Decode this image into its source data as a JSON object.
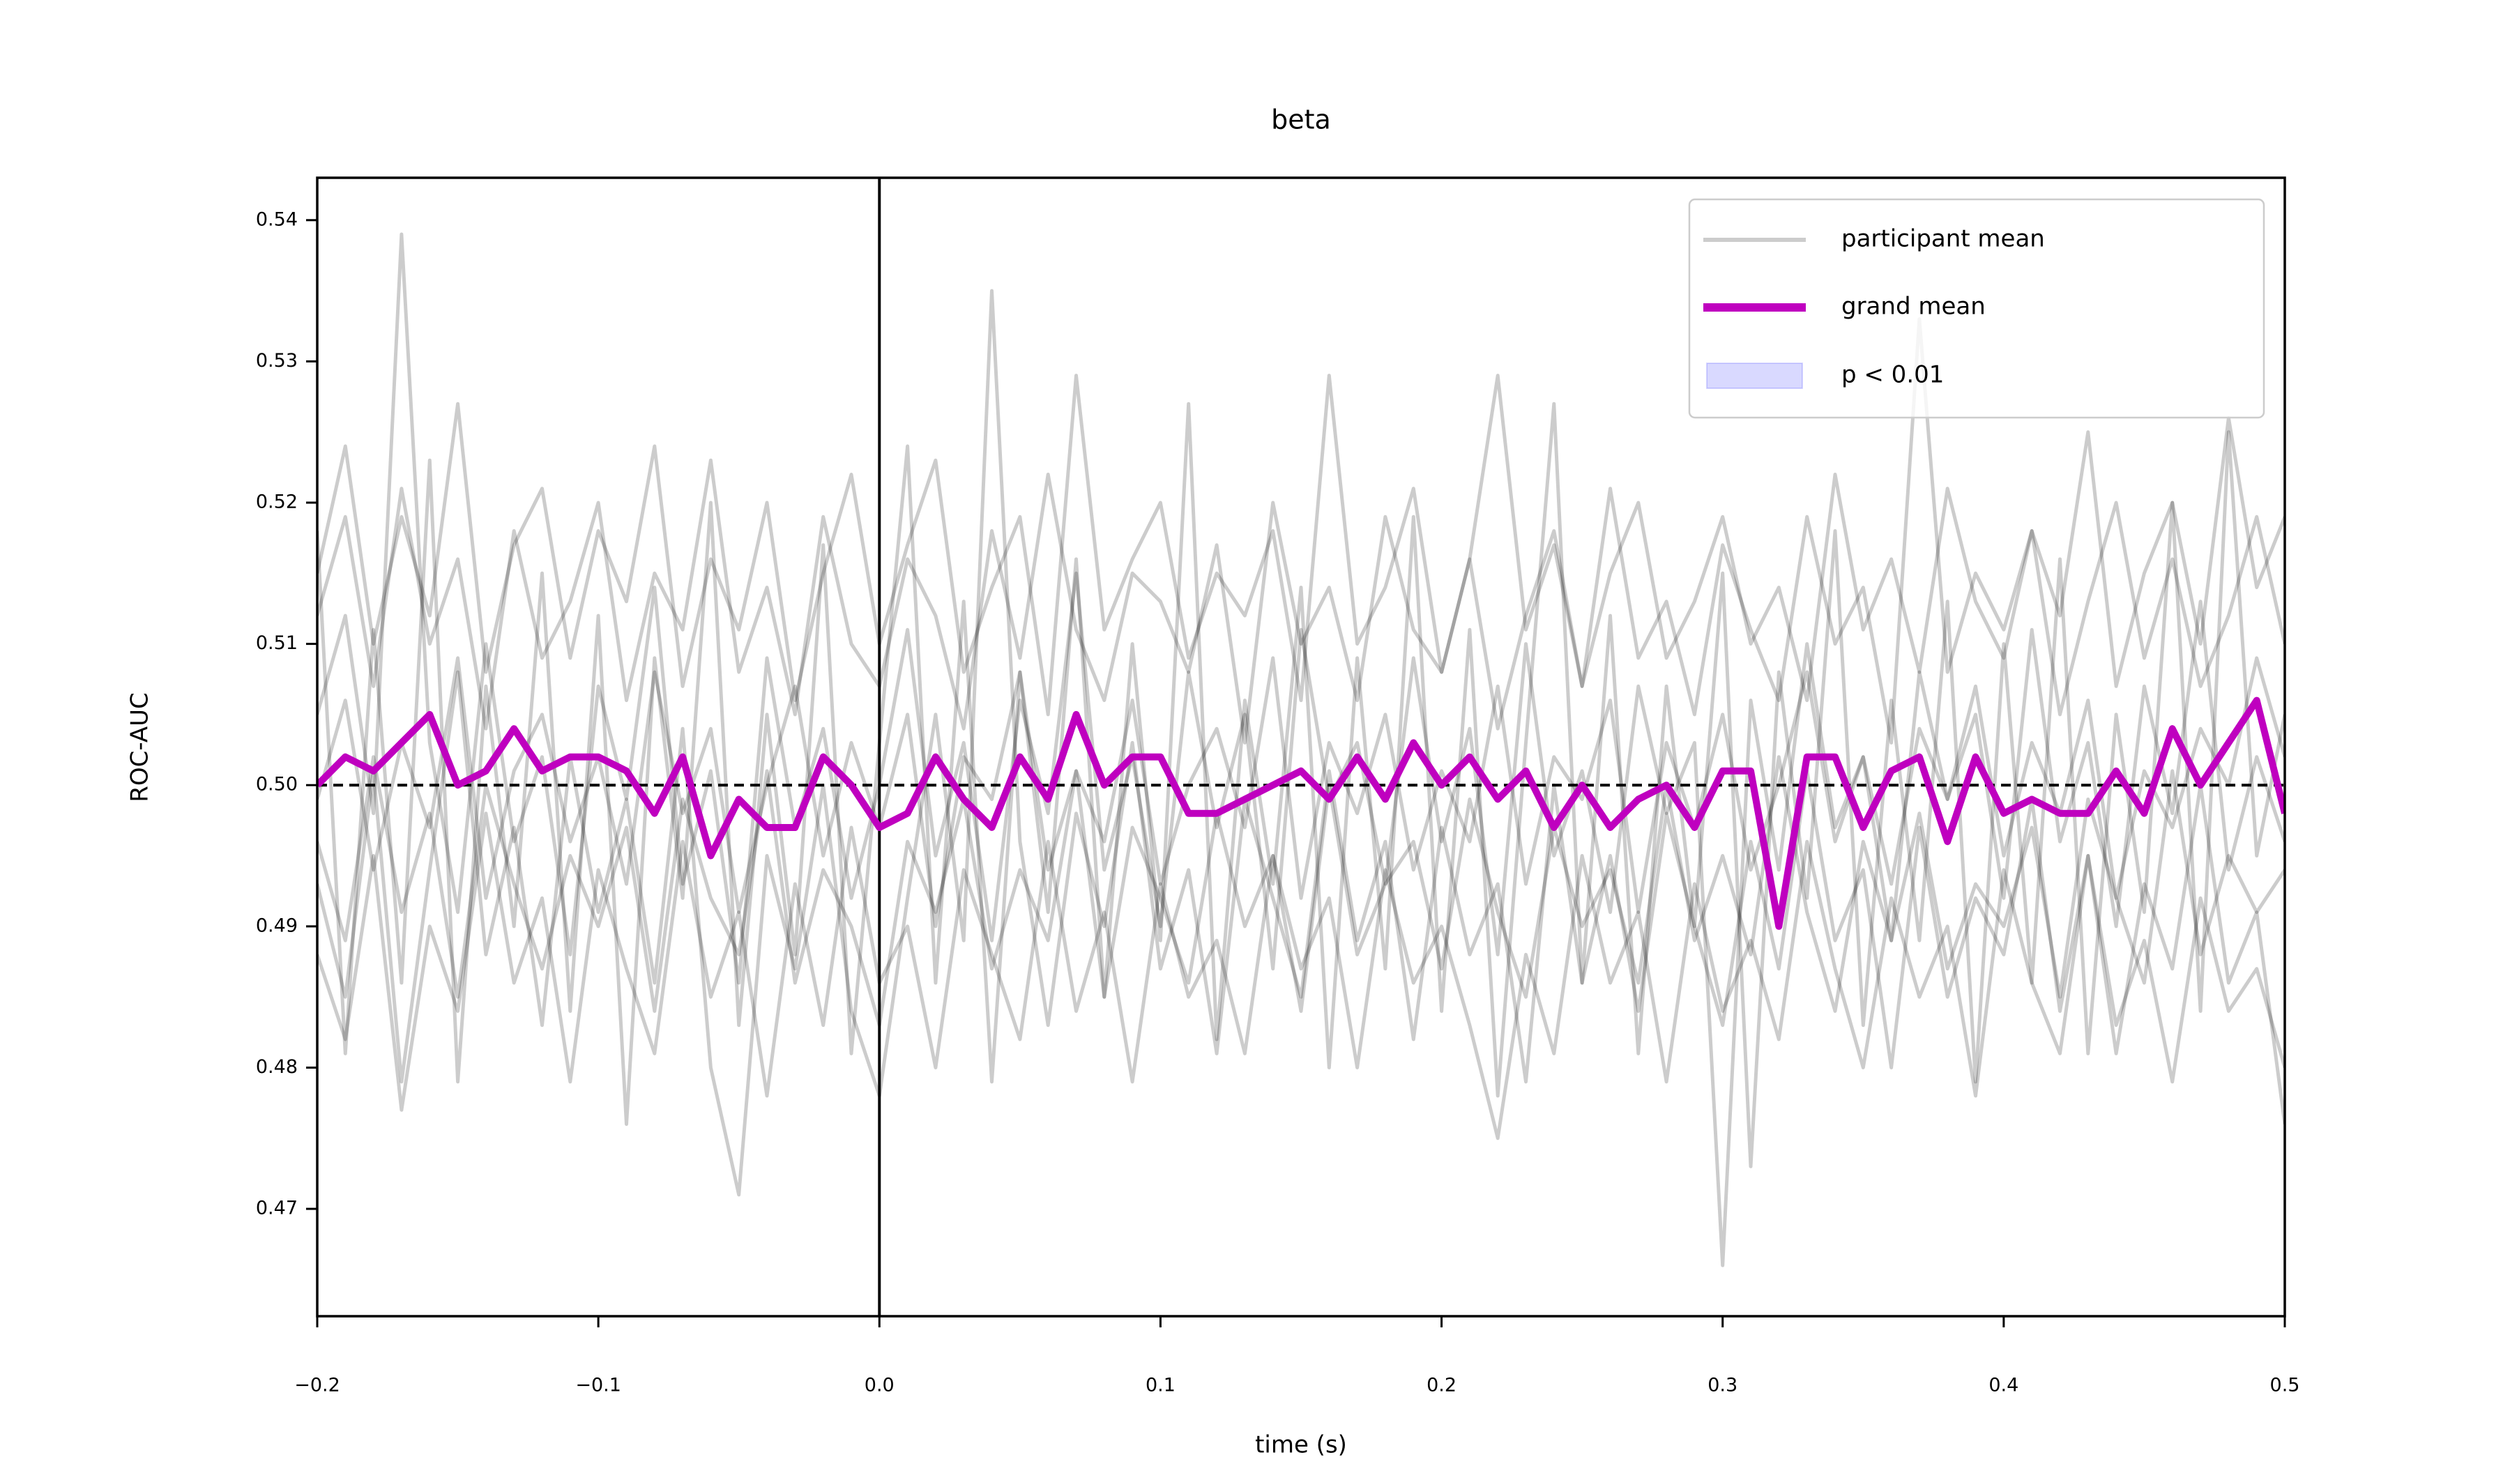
{
  "chart_data": {
    "type": "line",
    "title": "beta",
    "xlabel": "time (s)",
    "ylabel": "ROC-AUC",
    "xlim": [
      -0.2,
      0.5
    ],
    "ylim": [
      0.4624,
      0.543
    ],
    "xticks": [
      {
        "value": -0.2,
        "label": "−0.2"
      },
      {
        "value": -0.1,
        "label": "−0.1"
      },
      {
        "value": 0,
        "label": "0.0"
      },
      0.1,
      0.2,
      0.3,
      0.4,
      0.5
    ],
    "yticks": [
      0.47,
      0.48,
      0.49,
      {
        "value": 0.5,
        "label": "0.50"
      },
      0.51,
      0.52,
      0.53,
      0.54
    ],
    "reference_lines": {
      "x": 0,
      "y": 0.5
    },
    "legend": "upper right",
    "x": [
      -0.2,
      -0.19,
      -0.18,
      -0.17,
      -0.16,
      -0.15,
      -0.14,
      -0.13,
      -0.12,
      -0.11,
      -0.1,
      -0.09,
      -0.08,
      -0.07,
      -0.06,
      -0.05,
      -0.04,
      -0.03,
      -0.02,
      -0.01,
      0,
      0.01,
      0.02,
      0.03,
      0.04,
      0.05,
      0.06,
      0.07,
      0.08,
      0.09,
      0.1,
      0.11,
      0.12,
      0.13,
      0.14,
      0.15,
      0.16,
      0.17,
      0.18,
      0.19,
      0.2,
      0.21,
      0.22,
      0.23,
      0.24,
      0.25,
      0.26,
      0.27,
      0.28,
      0.29,
      0.3,
      0.31,
      0.32,
      0.33,
      0.34,
      0.35,
      0.36,
      0.37,
      0.38,
      0.39,
      0.4,
      0.41,
      0.42,
      0.43,
      0.44,
      0.45,
      0.46,
      0.47,
      0.48,
      0.49,
      0.5
    ],
    "participants": {
      "name": "participant mean",
      "color": "#000000",
      "alpha": 0.2,
      "series": [
        [
          0.505,
          0.512,
          0.498,
          0.539,
          0.503,
          0.491,
          0.51,
          0.496,
          0.502,
          0.488,
          0.507,
          0.499,
          0.514,
          0.493,
          0.501,
          0.486,
          0.509,
          0.497,
          0.504,
          0.492,
          0.5,
          0.511,
          0.495,
          0.503,
          0.489,
          0.506,
          0.498,
          0.515,
          0.494,
          0.502,
          0.49,
          0.508,
          0.497,
          0.505,
          0.487,
          0.511,
          0.499,
          0.503,
          0.493,
          0.509,
          0.496,
          0.504,
          0.488,
          0.51,
          0.495,
          0.501,
          0.491,
          0.507,
          0.498,
          0.503,
          0.466,
          0.506,
          0.494,
          0.51,
          0.497,
          0.502,
          0.489,
          0.508,
          0.499,
          0.505,
          0.492,
          0.511,
          0.496,
          0.503,
          0.49,
          0.507,
          0.498,
          0.513,
          0.494,
          0.502,
          0.496
        ],
        [
          0.493,
          0.485,
          0.501,
          0.479,
          0.494,
          0.508,
          0.488,
          0.497,
          0.483,
          0.502,
          0.491,
          0.499,
          0.486,
          0.504,
          0.48,
          0.471,
          0.495,
          0.487,
          0.5,
          0.484,
          0.478,
          0.492,
          0.505,
          0.489,
          0.535,
          0.496,
          0.483,
          0.498,
          0.49,
          0.503,
          0.487,
          0.494,
          0.481,
          0.499,
          0.492,
          0.485,
          0.501,
          0.489,
          0.496,
          0.482,
          0.497,
          0.488,
          0.493,
          0.479,
          0.5,
          0.486,
          0.495,
          0.484,
          0.498,
          0.49,
          0.483,
          0.496,
          0.487,
          0.501,
          0.489,
          0.494,
          0.48,
          0.497,
          0.485,
          0.492,
          0.488,
          0.499,
          0.484,
          0.495,
          0.481,
          0.493,
          0.487,
          0.5,
          0.486,
          0.491,
          0.476
        ],
        [
          0.512,
          0.519,
          0.507,
          0.521,
          0.51,
          0.516,
          0.504,
          0.518,
          0.509,
          0.513,
          0.52,
          0.506,
          0.515,
          0.511,
          0.523,
          0.508,
          0.514,
          0.505,
          0.519,
          0.51,
          0.507,
          0.516,
          0.512,
          0.504,
          0.518,
          0.509,
          0.522,
          0.511,
          0.506,
          0.515,
          0.513,
          0.508,
          0.517,
          0.503,
          0.52,
          0.51,
          0.514,
          0.506,
          0.519,
          0.511,
          0.508,
          0.516,
          0.504,
          0.512,
          0.518,
          0.507,
          0.521,
          0.509,
          0.513,
          0.505,
          0.517,
          0.511,
          0.506,
          0.519,
          0.51,
          0.514,
          0.503,
          0.533,
          0.508,
          0.515,
          0.511,
          0.518,
          0.505,
          0.513,
          0.52,
          0.509,
          0.516,
          0.507,
          0.512,
          0.519,
          0.51
        ],
        [
          0.499,
          0.506,
          0.494,
          0.503,
          0.497,
          0.509,
          0.492,
          0.501,
          0.505,
          0.496,
          0.502,
          0.493,
          0.508,
          0.498,
          0.504,
          0.491,
          0.5,
          0.507,
          0.495,
          0.503,
          0.497,
          0.505,
          0.49,
          0.502,
          0.499,
          0.508,
          0.494,
          0.501,
          0.496,
          0.506,
          0.493,
          0.5,
          0.504,
          0.497,
          0.509,
          0.492,
          0.503,
          0.498,
          0.505,
          0.494,
          0.501,
          0.496,
          0.507,
          0.493,
          0.502,
          0.499,
          0.506,
          0.491,
          0.503,
          0.497,
          0.505,
          0.494,
          0.5,
          0.508,
          0.496,
          0.502,
          0.493,
          0.504,
          0.499,
          0.507,
          0.495,
          0.503,
          0.498,
          0.506,
          0.492,
          0.501,
          0.497,
          0.504,
          0.5,
          0.509,
          0.502
        ],
        [
          0.488,
          0.482,
          0.495,
          0.477,
          0.49,
          0.484,
          0.498,
          0.486,
          0.492,
          0.479,
          0.494,
          0.487,
          0.481,
          0.496,
          0.485,
          0.491,
          0.478,
          0.493,
          0.483,
          0.497,
          0.486,
          0.49,
          0.48,
          0.494,
          0.488,
          0.482,
          0.496,
          0.484,
          0.491,
          0.479,
          0.493,
          0.485,
          0.489,
          0.481,
          0.495,
          0.487,
          0.492,
          0.48,
          0.494,
          0.486,
          0.49,
          0.483,
          0.475,
          0.488,
          0.481,
          0.495,
          0.486,
          0.491,
          0.479,
          0.493,
          0.484,
          0.489,
          0.482,
          0.496,
          0.487,
          0.48,
          0.492,
          0.485,
          0.49,
          0.478,
          0.494,
          0.486,
          0.481,
          0.495,
          0.483,
          0.489,
          0.479,
          0.492,
          0.484,
          0.487,
          0.48
        ],
        [
          0.515,
          0.524,
          0.51,
          0.519,
          0.512,
          0.527,
          0.508,
          0.517,
          0.521,
          0.509,
          0.518,
          0.513,
          0.524,
          0.507,
          0.516,
          0.511,
          0.52,
          0.506,
          0.515,
          0.522,
          0.51,
          0.517,
          0.523,
          0.508,
          0.514,
          0.519,
          0.505,
          0.529,
          0.511,
          0.516,
          0.52,
          0.509,
          0.515,
          0.512,
          0.518,
          0.506,
          0.529,
          0.51,
          0.514,
          0.521,
          0.508,
          0.516,
          0.529,
          0.511,
          0.517,
          0.507,
          0.515,
          0.52,
          0.509,
          0.513,
          0.519,
          0.51,
          0.514,
          0.506,
          0.522,
          0.511,
          0.516,
          0.508,
          0.521,
          0.513,
          0.509,
          0.518,
          0.512,
          0.525,
          0.507,
          0.515,
          0.52,
          0.51,
          0.526,
          0.514,
          0.519
        ],
        [
          0.496,
          0.489,
          0.502,
          0.491,
          0.498,
          0.485,
          0.5,
          0.493,
          0.487,
          0.495,
          0.49,
          0.497,
          0.484,
          0.499,
          0.492,
          0.488,
          0.501,
          0.486,
          0.494,
          0.49,
          0.483,
          0.496,
          0.491,
          0.499,
          0.487,
          0.494,
          0.489,
          0.501,
          0.485,
          0.497,
          0.492,
          0.486,
          0.498,
          0.49,
          0.495,
          0.484,
          0.5,
          0.488,
          0.493,
          0.496,
          0.487,
          0.499,
          0.491,
          0.485,
          0.497,
          0.49,
          0.494,
          0.486,
          0.5,
          0.489,
          0.495,
          0.488,
          0.502,
          0.491,
          0.484,
          0.496,
          0.489,
          0.498,
          0.487,
          0.493,
          0.49,
          0.497,
          0.485,
          0.499,
          0.492,
          0.486,
          0.501,
          0.488,
          0.495,
          0.491,
          0.494
        ],
        [
          0.518,
          0.481,
          0.511,
          0.486,
          0.523,
          0.479,
          0.507,
          0.49,
          0.515,
          0.484,
          0.512,
          0.476,
          0.509,
          0.492,
          0.52,
          0.483,
          0.505,
          0.488,
          0.517,
          0.481,
          0.503,
          0.524,
          0.486,
          0.513,
          0.479,
          0.508,
          0.491,
          0.516,
          0.485,
          0.51,
          0.489,
          0.527,
          0.482,
          0.506,
          0.493,
          0.514,
          0.48,
          0.509,
          0.487,
          0.519,
          0.484,
          0.511,
          0.478,
          0.503,
          0.527,
          0.486,
          0.512,
          0.481,
          0.507,
          0.49,
          0.515,
          0.473,
          0.508,
          0.492,
          0.518,
          0.483,
          0.506,
          0.489,
          0.513,
          0.479,
          0.51,
          0.486,
          0.516,
          0.481,
          0.505,
          0.491,
          0.52,
          0.484,
          0.525,
          0.495,
          0.505
        ]
      ]
    },
    "grand_mean": {
      "name": "grand mean",
      "color": "#bf00bf",
      "values": [
        0.5,
        0.502,
        0.501,
        0.503,
        0.505,
        0.5,
        0.501,
        0.504,
        0.501,
        0.502,
        0.502,
        0.501,
        0.498,
        0.502,
        0.495,
        0.499,
        0.497,
        0.497,
        0.502,
        0.5,
        0.497,
        0.498,
        0.502,
        0.499,
        0.497,
        0.502,
        0.499,
        0.505,
        0.5,
        0.502,
        0.502,
        0.498,
        0.498,
        0.499,
        0.5,
        0.501,
        0.499,
        0.502,
        0.499,
        0.503,
        0.5,
        0.502,
        0.499,
        0.501,
        0.497,
        0.5,
        0.497,
        0.499,
        0.5,
        0.497,
        0.501,
        0.501,
        0.49,
        0.502,
        0.502,
        0.497,
        0.501,
        0.502,
        0.496,
        0.502,
        0.498,
        0.499,
        0.498,
        0.498,
        0.501,
        0.498,
        0.504,
        0.5,
        0.503,
        0.506,
        0.498
      ]
    },
    "significance": {
      "name": "p < 0.01",
      "color": "#0000ff",
      "alpha": 0.15
    }
  }
}
